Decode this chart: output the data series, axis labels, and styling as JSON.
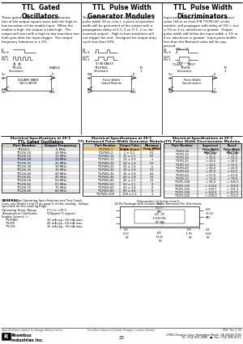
{
  "title_left": "TTL  Gated\nOscillators",
  "title_center": "TTL  Pulse Width\nGenerator Modules",
  "title_right": "TTL  Pulse Width\nDiscriminators",
  "bg_color": "#ffffff",
  "page_number": "23",
  "address_line1": "17881 Chestnut Lane, Huntington Beach, CA 92649-1745",
  "address_line2": "Tel: (714) 895-0060   ■  Fax: (714) 895-0071",
  "desc_left": "These gated oscillators permit synchroniza-\ntion of the output square wave with the high-to-\nlow transition of the enable input.  When the\nenable is high, the output is held high.  The\noutput will start with a high to low transition one\nhalf-cycle after the input trigger.  The output\nfrequency tolerance is ± 2%.",
  "desc_center": "Triggered by the inputs rising edge (input\npulse width 10 ns, min.), a pulse of specified\nwidth will be generated at the output with a\npropagation delay of 0.1, 2 ns (7.1, 2 ns, for\ninverted output).  High to low transitions will\nnot trigger the unit.  Designed for output duty-\ncycle less than 50%.",
  "desc_right": "Input pulse widths greater than the Nominal\nvalue (XX in ns from P/N TTLPD-XX) of the\nmodule, will propagate with delay of (XX ÷ tns)\n± 5% or 2 ns, whichever is greater.  Output\npulse width will follow the input width ± 1% or\n4 ns, whichever is greater.  Input pulse widths\nless than the Nominal value will be sup-\npressed.",
  "ttlos_parts": [
    [
      "TTLOS-5",
      "5 MHz"
    ],
    [
      "TTLOS-10",
      "10 MHz"
    ],
    [
      "TTLOS-15",
      "15 MHz"
    ],
    [
      "TTLOS-20",
      "20 MHz"
    ],
    [
      "TTLOS-25",
      "25 MHz"
    ],
    [
      "TTLOS-30",
      "30 MHz"
    ],
    [
      "TTLOS-35",
      "35 MHz"
    ],
    [
      "TTLOS-40",
      "40 MHz"
    ],
    [
      "TTLOS-45",
      "45 MHz"
    ],
    [
      "TTLOS-50",
      "50 MHz"
    ],
    [
      "TTLOS-65",
      "65 MHz"
    ],
    [
      "TTLOS-75",
      "75 MHz"
    ],
    [
      "TTLOS-80",
      "80 MHz"
    ]
  ],
  "ttlpwg_parts": [
    [
      "TTLPWG-1",
      "1 ± 0.1",
      "5.1"
    ],
    [
      "TTLPWG-2",
      "2 ± 0.2",
      "2.1"
    ],
    [
      "TTLPWG-15",
      "15 ± 1.1",
      "8.1"
    ],
    [
      "TTLPWG-10",
      "10 ± 0.6",
      "n"
    ],
    [
      "TTLPWG-20",
      "20 ± 1.4",
      "5.1"
    ],
    [
      "TTLPWG-25",
      "25 ± 1.4",
      "n"
    ],
    [
      "TTLPWG-30",
      "30 ± 1.8",
      "3.1"
    ],
    [
      "TTLPWG-35",
      "35 ± 1.8",
      "4.1"
    ],
    [
      "TTLPWG-40",
      "40 ± 1.8",
      "3.1"
    ],
    [
      "TTLPWG-45",
      "45 ± 2.2",
      "3.1"
    ],
    [
      "TTLPWG-50",
      "50 ± 2.1",
      "9"
    ],
    [
      "TTLPWG-60",
      "60 ± 3.8",
      "8"
    ],
    [
      "TTLPWG-80",
      "80 ± 4.8",
      "5"
    ],
    [
      "TTLPWG-100",
      "100 ± 6.1",
      "1"
    ]
  ],
  "ttlpd_parts": [
    [
      "TTLPD-10",
      "< 8.5",
      "> 11.5"
    ],
    [
      "TTLPD-15",
      "< 12.5",
      "> 15.5"
    ],
    [
      "TTLPD-20",
      "< 16.5",
      "> 21.5"
    ],
    [
      "TTLPD-25",
      "< 20.5",
      "> 26.5"
    ],
    [
      "TTLPD-30",
      "< 24.5",
      "> 31.5"
    ],
    [
      "TTLPD-40",
      "< 36.0",
      "> 42.0"
    ],
    [
      "TTLPD-50",
      "< 47.5",
      "> 52.5"
    ],
    [
      "TTLPD-60",
      "< 57.0",
      "> 63.0"
    ],
    [
      "TTLPD-75",
      "< 71.0",
      "> 79.0"
    ],
    [
      "TTLPD-100",
      "< 95.0",
      "> 105.0"
    ],
    [
      "TTLPD-120",
      "< 114.0",
      "> 126.0"
    ],
    [
      "TTLPD-125",
      "< 118.7",
      "> 131.3"
    ],
    [
      "TTLPD-150",
      "< 142.5",
      "> 157.5"
    ],
    [
      "TTLPD-200",
      "< 190.0",
      "> 210.0"
    ]
  ],
  "general_text": "GENERAL:  For Operating Specifications and Test Condi-\ntions, see Tables I and VI on page 5 of this catalog.  Delays\nspecified for the Leading Edge.",
  "ops_labels": [
    "Operating Temp. Range",
    "Temperature Coefficient",
    "Supply Current, Icc:"
  ],
  "ops_values": [
    "0°C to +70°C",
    "500ppm/°C typical",
    ""
  ],
  "supply_labels": [
    "TTL/PWG",
    "TTL/PD",
    "TTL/OS"
  ],
  "supply_values": [
    "35 mA typ., 50 mA max.",
    "40 mA typ., 60 mA max.",
    "15 mA typ., 30 mA max."
  ],
  "footer_left": "Specifications subject to change without notice.",
  "footer_center": "For other values or Custom Designs, contact factory.",
  "footer_right": "PN4, Rev 1-06",
  "dims_title1": "Dimensions (in Inches (mm))",
  "dims_title2": "14-Pin Package with Ground Leads Removed Per Schematic"
}
